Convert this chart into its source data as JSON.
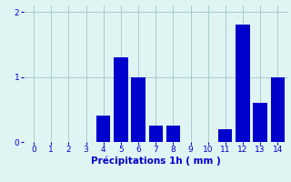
{
  "x_values": [
    0,
    1,
    2,
    3,
    4,
    5,
    6,
    7,
    8,
    9,
    10,
    11,
    12,
    13,
    14
  ],
  "y_values": [
    0,
    0,
    0,
    0,
    0.4,
    1.3,
    1.0,
    0.25,
    0.25,
    0,
    0,
    0.2,
    1.8,
    0.6,
    1.0
  ],
  "bar_color": "#0000cc",
  "background_color": "#e0f4f4",
  "grid_color": "#aacccc",
  "xlabel": "Précipitations 1h ( mm )",
  "xlabel_color": "#0000cc",
  "tick_color": "#0000cc",
  "ylim": [
    0,
    2.1
  ],
  "xlim": [
    -0.6,
    14.6
  ],
  "yticks": [
    0,
    1,
    2
  ],
  "xticks": [
    0,
    1,
    2,
    3,
    4,
    5,
    6,
    7,
    8,
    9,
    10,
    11,
    12,
    13,
    14
  ]
}
